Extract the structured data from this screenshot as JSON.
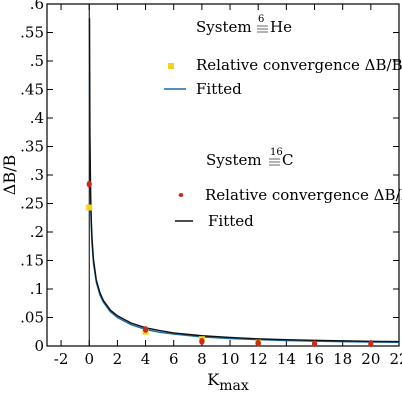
{
  "chart_data": {
    "type": "scatter",
    "title": "",
    "xlabel": "K",
    "xlabel_sub": "max",
    "ylabel": "ΔB/B",
    "xlim": [
      -3,
      22
    ],
    "ylim": [
      0,
      0.6
    ],
    "xticks": [
      -2,
      0,
      2,
      4,
      6,
      8,
      10,
      12,
      14,
      16,
      18,
      20,
      22
    ],
    "xtick_labels": [
      "-2",
      "0",
      "2",
      "4",
      "6",
      "8",
      "10",
      "12",
      "14",
      "16",
      "18",
      "20",
      "22"
    ],
    "yticks": [
      0,
      0.05,
      0.1,
      0.15,
      0.2,
      0.25,
      0.3,
      0.35,
      0.4,
      0.45,
      0.5,
      0.55,
      0.6
    ],
    "ytick_labels": [
      "0",
      ".05",
      ".1",
      ".15",
      ".2",
      ".25",
      ".3",
      ".35",
      ".4",
      ".45",
      ".5",
      ".55",
      ".6"
    ],
    "grid": false,
    "legends": [
      {
        "system_text": "System",
        "mass": "6",
        "element": "He",
        "points_label": "Relative convergence ΔB/B",
        "fit_label": "Fitted",
        "placement": "top-right"
      },
      {
        "system_text": "System",
        "mass": "16",
        "element": "C",
        "points_label": "Relative convergence ΔB/B",
        "fit_label": "Fitted",
        "placement": "center-right"
      }
    ],
    "series": [
      {
        "name": "Relative convergence ΔB/B",
        "system": "6He",
        "kind": "points",
        "color": "#f2d21c",
        "x": [
          0,
          4,
          8,
          12
        ],
        "y": [
          0.243,
          0.025,
          0.012,
          0.006
        ]
      },
      {
        "name": "Fitted",
        "system": "6He",
        "kind": "line",
        "color": "#1a6aa8",
        "x": [
          0.02,
          0.05,
          0.1,
          0.15,
          0.2,
          0.3,
          0.5,
          0.75,
          1,
          1.5,
          2,
          3,
          4,
          5,
          6,
          8,
          10,
          12,
          14,
          16,
          18,
          20,
          22
        ],
        "y": [
          0.48,
          0.33,
          0.245,
          0.205,
          0.178,
          0.145,
          0.112,
          0.09,
          0.077,
          0.06,
          0.05,
          0.037,
          0.029,
          0.024,
          0.021,
          0.016,
          0.013,
          0.011,
          0.0095,
          0.0085,
          0.0075,
          0.007,
          0.0065
        ]
      },
      {
        "name": "Relative convergence ΔB/B",
        "system": "16C",
        "kind": "points",
        "color": "#cc2a1e",
        "x": [
          0,
          4,
          8,
          12,
          16,
          20
        ],
        "y": [
          0.284,
          0.029,
          0.008,
          0.005,
          0.004,
          0.004
        ]
      },
      {
        "name": "Fitted",
        "system": "16C",
        "kind": "line",
        "color": "#111111",
        "x": [
          0.02,
          0.05,
          0.1,
          0.15,
          0.2,
          0.3,
          0.5,
          0.75,
          1,
          1.5,
          2,
          3,
          4,
          5,
          6,
          8,
          10,
          12,
          14,
          16,
          18,
          20,
          22
        ],
        "y": [
          0.575,
          0.37,
          0.265,
          0.218,
          0.188,
          0.152,
          0.116,
          0.094,
          0.08,
          0.063,
          0.053,
          0.04,
          0.032,
          0.027,
          0.023,
          0.018,
          0.015,
          0.0125,
          0.011,
          0.01,
          0.009,
          0.0083,
          0.0077
        ]
      }
    ]
  }
}
